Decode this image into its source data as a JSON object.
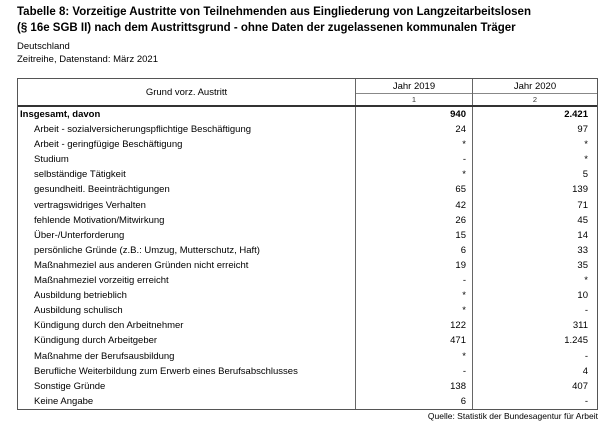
{
  "page": {
    "title_line1": "Tabelle 8: Vorzeitige Austritte von Teilnehmenden aus Eingliederung von Langzeitarbeitslosen",
    "title_line2": "(§ 16e SGB II) nach dem Austrittsgrund - ohne Daten der zugelassenen kommunalen Träger",
    "region": "Deutschland",
    "datastand": "Zeitreihe, Datenstand: März 2021",
    "source": "Quelle: Statistik der Bundesagentur für Arbeit"
  },
  "table": {
    "label_header": "Grund vorz. Austritt",
    "columns": [
      {
        "label": "Jahr 2019",
        "index": "1"
      },
      {
        "label": "Jahr 2020",
        "index": "2"
      }
    ],
    "rows": [
      {
        "label": "Insgesamt, davon",
        "v2019": "940",
        "v2020": "2.421",
        "bold": true,
        "indent": false
      },
      {
        "label": "Arbeit - sozialversicherungspflichtige Beschäftigung",
        "v2019": "24",
        "v2020": "97"
      },
      {
        "label": "Arbeit - geringfügige Beschäftigung",
        "v2019": "*",
        "v2020": "*"
      },
      {
        "label": "Studium",
        "v2019": "-",
        "v2020": "*"
      },
      {
        "label": "selbständige Tätigkeit",
        "v2019": "*",
        "v2020": "5"
      },
      {
        "label": "gesundheitl. Beeinträchtigungen",
        "v2019": "65",
        "v2020": "139"
      },
      {
        "label": "vertragswidriges Verhalten",
        "v2019": "42",
        "v2020": "71"
      },
      {
        "label": "fehlende Motivation/Mitwirkung",
        "v2019": "26",
        "v2020": "45"
      },
      {
        "label": "Über-/Unterforderung",
        "v2019": "15",
        "v2020": "14"
      },
      {
        "label": "persönliche Gründe (z.B.: Umzug, Mutterschutz, Haft)",
        "v2019": "6",
        "v2020": "33"
      },
      {
        "label": "Maßnahmeziel aus anderen Gründen nicht erreicht",
        "v2019": "19",
        "v2020": "35"
      },
      {
        "label": "Maßnahmeziel vorzeitig erreicht",
        "v2019": "-",
        "v2020": "*"
      },
      {
        "label": "Ausbildung betrieblich",
        "v2019": "*",
        "v2020": "10"
      },
      {
        "label": "Ausbildung schulisch",
        "v2019": "*",
        "v2020": "-"
      },
      {
        "label": "Kündigung durch den Arbeitnehmer",
        "v2019": "122",
        "v2020": "311"
      },
      {
        "label": "Kündigung durch Arbeitgeber",
        "v2019": "471",
        "v2020": "1.245"
      },
      {
        "label": "Maßnahme der Berufsausbildung",
        "v2019": "*",
        "v2020": "-"
      },
      {
        "label": "Berufliche Weiterbildung zum Erwerb eines Berufsabschlusses",
        "v2019": "-",
        "v2020": "4"
      },
      {
        "label": "Sonstige Gründe",
        "v2019": "138",
        "v2020": "407"
      },
      {
        "label": "Keine Angabe",
        "v2019": "6",
        "v2020": "-"
      }
    ]
  }
}
